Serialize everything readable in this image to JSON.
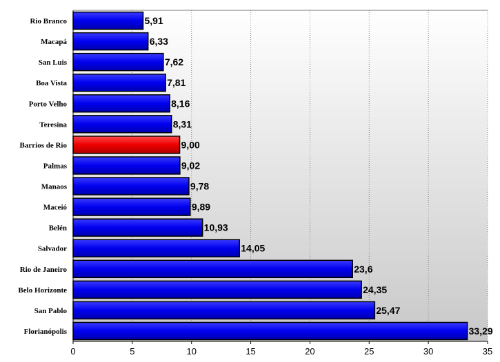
{
  "chart_data": {
    "type": "bar",
    "orientation": "horizontal",
    "title": "",
    "xlabel": "",
    "ylabel": "",
    "categories": [
      "Rio Branco",
      "Macapá",
      "San Luis",
      "Boa Vista",
      "Porto Velho",
      "Teresina",
      "Barrios de Rio",
      "Palmas",
      "Manaos",
      "Maceió",
      "Belén",
      "Salvador",
      "Rio de Janeiro",
      "Belo Horizonte",
      "San Pablo",
      "Florianópolis"
    ],
    "values": [
      5.91,
      6.33,
      7.62,
      7.81,
      8.16,
      8.31,
      9.0,
      9.02,
      9.78,
      9.89,
      10.93,
      14.05,
      23.6,
      24.35,
      25.47,
      33.29
    ],
    "value_labels": [
      "5,91",
      "6,33",
      "7,62",
      "7,81",
      "8,16",
      "8,31",
      "9,00",
      "9,02",
      "9,78",
      "9,89",
      "10,93",
      "14,05",
      "23,6",
      "24,35",
      "25,47",
      "33,29"
    ],
    "xlim": [
      0,
      35
    ],
    "xticks": [
      0,
      5,
      10,
      15,
      20,
      25,
      30,
      35
    ],
    "grid": "vertical dotted",
    "bar_color": "#0000ee",
    "highlight_category": "Barrios de Rio",
    "highlight_color": "#ee0000"
  }
}
